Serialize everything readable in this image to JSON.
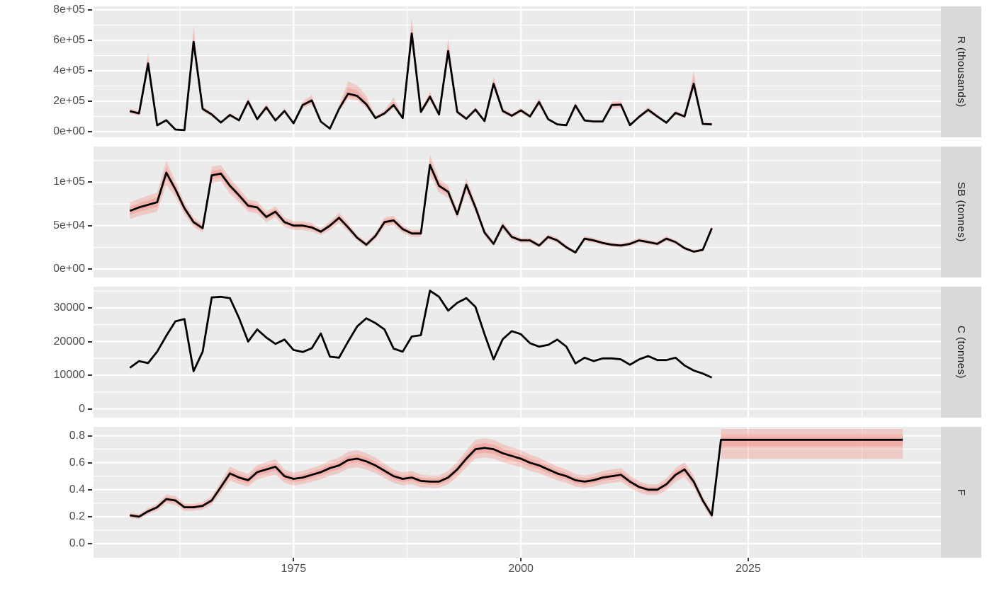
{
  "figure": {
    "background": "#FFFFFF",
    "panel_background": "#EBEBEB",
    "gridline_color": "#FFFFFF",
    "strip_background": "#D9D9D9",
    "strip_text_color": "#1A1A1A",
    "axis_text_color": "#4D4D4D",
    "tick_mark_color": "#333333",
    "line_color": "#000000",
    "ribbon_color": "#F8766D"
  },
  "chart_data": {
    "type": "line",
    "faceted": true,
    "legend": "none",
    "grid": "on",
    "x": {
      "lim": [
        1953,
        2046.2
      ],
      "tick_values": [
        1975,
        2000,
        2025
      ],
      "tick_labels": [
        "1975",
        "2000",
        "2025"
      ],
      "minor_tick_values": [
        1962.5,
        1987.5,
        2012.5,
        2037.5
      ],
      "label": ""
    },
    "years": {
      "start": 1957,
      "end": 2021,
      "step": 1
    },
    "panels": [
      {
        "strip_label": "R (thousands)",
        "ylim": [
          -37000,
          823000
        ],
        "ytick_values": [
          0,
          200000,
          400000,
          600000,
          800000
        ],
        "ytick_labels": [
          "0e+00",
          "2e+05",
          "4e+05",
          "6e+05",
          "8e+05"
        ],
        "minor_gridlines": [
          100000,
          300000,
          500000,
          700000
        ],
        "values": [
          135000,
          120000,
          448000,
          42000,
          75000,
          14000,
          10000,
          590000,
          150000,
          113000,
          60000,
          110000,
          75000,
          198000,
          82000,
          160000,
          74000,
          136000,
          55000,
          175000,
          205000,
          66000,
          20000,
          150000,
          250000,
          235000,
          180000,
          90000,
          120000,
          175000,
          90000,
          645000,
          130000,
          230000,
          113000,
          530000,
          130000,
          85000,
          145000,
          70000,
          315000,
          136000,
          105000,
          140000,
          100000,
          195000,
          82000,
          48000,
          43000,
          172000,
          74000,
          67000,
          67000,
          175000,
          178000,
          43000,
          98000,
          144000,
          100000,
          59000,
          124000,
          100000,
          315000,
          51000,
          48000
        ],
        "ribbon_lo": [
          119000,
          106000,
          400000,
          37000,
          66000,
          12000,
          9000,
          535000,
          132000,
          99000,
          53000,
          97000,
          66000,
          174000,
          72000,
          141000,
          65000,
          120000,
          48000,
          154000,
          180000,
          58000,
          18000,
          132000,
          215000,
          205000,
          158000,
          79000,
          106000,
          155000,
          79000,
          585000,
          114000,
          202000,
          99000,
          480000,
          114000,
          75000,
          128000,
          62000,
          282000,
          120000,
          92000,
          123000,
          88000,
          172000,
          72000,
          42000,
          38000,
          151000,
          65000,
          59000,
          59000,
          154000,
          157000,
          38000,
          86000,
          127000,
          88000,
          52000,
          109000,
          88000,
          275000,
          45000,
          38000
        ],
        "ribbon_hi": [
          153000,
          136000,
          520000,
          47000,
          85000,
          16000,
          11000,
          695000,
          170000,
          128000,
          68000,
          124000,
          85000,
          224000,
          93000,
          181000,
          84000,
          154000,
          62000,
          200000,
          240000,
          75000,
          23000,
          175000,
          330000,
          305000,
          235000,
          105000,
          140000,
          225000,
          102000,
          755000,
          147000,
          265000,
          128000,
          615000,
          147000,
          96000,
          164000,
          79000,
          362000,
          154000,
          119000,
          158000,
          113000,
          222000,
          93000,
          54000,
          49000,
          196000,
          84000,
          76000,
          76000,
          200000,
          203000,
          49000,
          111000,
          163000,
          113000,
          67000,
          140000,
          113000,
          400000,
          58000,
          62000
        ]
      },
      {
        "strip_label": "SB (tonnes)",
        "ylim": [
          -9800,
          141200
        ],
        "ytick_values": [
          0,
          50000,
          100000
        ],
        "ytick_labels": [
          "0e+00",
          "5e+04",
          "1e+05"
        ],
        "minor_gridlines": [
          25000,
          75000,
          125000
        ],
        "values": [
          67000,
          71000,
          74000,
          77000,
          111000,
          92000,
          70000,
          54000,
          47000,
          108000,
          110000,
          96000,
          85000,
          73000,
          71000,
          60000,
          66000,
          54000,
          50000,
          50000,
          48000,
          43000,
          50000,
          59000,
          48000,
          36000,
          28000,
          38000,
          54000,
          56000,
          46000,
          41000,
          41000,
          120000,
          96000,
          89000,
          63000,
          97000,
          71000,
          42000,
          29000,
          50000,
          37000,
          33000,
          33000,
          27000,
          37000,
          33000,
          25000,
          19000,
          35000,
          33000,
          30000,
          28000,
          27000,
          29000,
          33000,
          31000,
          29000,
          35000,
          31000,
          24000,
          20000,
          22000,
          47000
        ],
        "ribbon_lo": [
          57500,
          61000,
          63500,
          66000,
          97000,
          83000,
          63000,
          48500,
          42000,
          99000,
          101000,
          87000,
          77000,
          66000,
          64000,
          54000,
          59500,
          48500,
          45000,
          45000,
          43000,
          39000,
          45000,
          53000,
          43000,
          32500,
          25000,
          34000,
          48500,
          50500,
          41500,
          37000,
          37000,
          108000,
          88000,
          82000,
          57500,
          89000,
          65000,
          38000,
          26000,
          45500,
          33500,
          30000,
          30000,
          24500,
          34000,
          30000,
          22500,
          17000,
          32000,
          30000,
          27500,
          25500,
          24500,
          26500,
          30000,
          28500,
          26500,
          32000,
          28500,
          22000,
          18000,
          20000,
          43000
        ],
        "ribbon_hi": [
          76500,
          81000,
          84500,
          88000,
          125000,
          101000,
          77000,
          59500,
          52000,
          118000,
          120000,
          105000,
          93000,
          80000,
          78000,
          66000,
          72500,
          59500,
          55000,
          55000,
          53000,
          47000,
          55000,
          65000,
          53000,
          39500,
          31000,
          42000,
          59500,
          61500,
          50500,
          45000,
          45000,
          132000,
          104000,
          96000,
          68500,
          105000,
          77000,
          46000,
          32000,
          54500,
          40500,
          36000,
          36000,
          29500,
          40000,
          36000,
          27500,
          21000,
          38000,
          36000,
          32500,
          30500,
          29500,
          31500,
          36000,
          33500,
          31500,
          38000,
          33500,
          26000,
          22000,
          24000,
          51000
        ]
      },
      {
        "strip_label": "C (tonnes)",
        "ylim": [
          -2600,
          36300
        ],
        "ytick_values": [
          0,
          10000,
          20000,
          30000
        ],
        "ytick_labels": [
          "0",
          "10000",
          "20000",
          "30000"
        ],
        "minor_gridlines": [
          5000,
          15000,
          25000,
          35000
        ],
        "values": [
          12200,
          14200,
          13600,
          17000,
          21700,
          26000,
          26700,
          11200,
          17000,
          33100,
          33300,
          32900,
          27000,
          20000,
          23600,
          21200,
          19300,
          20600,
          17500,
          16900,
          18000,
          22400,
          15500,
          15200,
          20000,
          24500,
          26900,
          25500,
          23600,
          17900,
          17000,
          21500,
          21900,
          35100,
          33300,
          29200,
          31500,
          32900,
          30300,
          22200,
          14700,
          20700,
          23100,
          22200,
          19500,
          18500,
          19000,
          20600,
          18500,
          13500,
          15200,
          14200,
          15000,
          15000,
          14700,
          13100,
          14700,
          15700,
          14500,
          14500,
          15200,
          12900,
          11400,
          10500,
          9300
        ],
        "ribbon_lo": null,
        "ribbon_hi": null
      },
      {
        "strip_label": "F",
        "ylim": [
          -0.105,
          0.866
        ],
        "ytick_values": [
          0.0,
          0.2,
          0.4,
          0.6,
          0.8
        ],
        "ytick_labels": [
          "0.0",
          "0.2",
          "0.4",
          "0.6",
          "0.8"
        ],
        "minor_gridlines": [
          0.1,
          0.3,
          0.5,
          0.7
        ],
        "values": [
          0.21,
          0.2,
          0.24,
          0.27,
          0.33,
          0.32,
          0.27,
          0.27,
          0.28,
          0.32,
          0.42,
          0.52,
          0.49,
          0.47,
          0.53,
          0.55,
          0.57,
          0.5,
          0.48,
          0.49,
          0.51,
          0.53,
          0.56,
          0.58,
          0.62,
          0.63,
          0.61,
          0.58,
          0.54,
          0.5,
          0.48,
          0.49,
          0.465,
          0.46,
          0.46,
          0.49,
          0.55,
          0.63,
          0.7,
          0.71,
          0.7,
          0.67,
          0.65,
          0.63,
          0.6,
          0.58,
          0.55,
          0.52,
          0.5,
          0.47,
          0.46,
          0.47,
          0.49,
          0.5,
          0.51,
          0.46,
          0.42,
          0.4,
          0.4,
          0.44,
          0.51,
          0.55,
          0.46,
          0.32,
          0.21
        ],
        "ribbon_lo": [
          0.189,
          0.18,
          0.216,
          0.243,
          0.297,
          0.288,
          0.243,
          0.243,
          0.252,
          0.288,
          0.378,
          0.468,
          0.441,
          0.423,
          0.477,
          0.495,
          0.513,
          0.45,
          0.432,
          0.441,
          0.459,
          0.477,
          0.504,
          0.522,
          0.558,
          0.567,
          0.549,
          0.522,
          0.486,
          0.45,
          0.432,
          0.441,
          0.419,
          0.414,
          0.414,
          0.441,
          0.495,
          0.567,
          0.63,
          0.639,
          0.63,
          0.603,
          0.585,
          0.567,
          0.54,
          0.522,
          0.495,
          0.468,
          0.45,
          0.423,
          0.414,
          0.423,
          0.441,
          0.45,
          0.459,
          0.414,
          0.378,
          0.36,
          0.36,
          0.396,
          0.459,
          0.495,
          0.414,
          0.288,
          0.179
        ],
        "ribbon_hi": [
          0.231,
          0.22,
          0.264,
          0.297,
          0.363,
          0.352,
          0.297,
          0.297,
          0.308,
          0.352,
          0.462,
          0.572,
          0.539,
          0.517,
          0.583,
          0.605,
          0.627,
          0.55,
          0.528,
          0.539,
          0.561,
          0.583,
          0.616,
          0.638,
          0.682,
          0.693,
          0.671,
          0.638,
          0.594,
          0.55,
          0.528,
          0.539,
          0.512,
          0.506,
          0.506,
          0.539,
          0.605,
          0.693,
          0.77,
          0.781,
          0.77,
          0.737,
          0.715,
          0.693,
          0.66,
          0.638,
          0.605,
          0.572,
          0.55,
          0.517,
          0.506,
          0.517,
          0.539,
          0.55,
          0.561,
          0.506,
          0.462,
          0.44,
          0.44,
          0.484,
          0.561,
          0.605,
          0.506,
          0.352,
          0.241
        ],
        "projection": {
          "start_year": 2022,
          "end_year": 2042,
          "value": 0.77,
          "outer_lo": 0.63,
          "outer_hi": 0.85,
          "inner_lo": 0.72,
          "inner_hi": 0.81
        }
      }
    ]
  }
}
